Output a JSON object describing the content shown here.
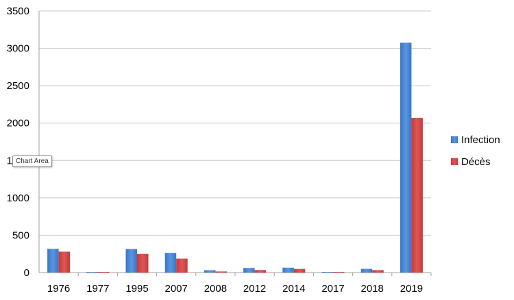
{
  "tooltip": {
    "text": "Chart Area"
  },
  "colors": {
    "infection": "#3A75C4",
    "infection_light": "#5A95E0",
    "deces": "#C43A3A",
    "deces_light": "#E05555",
    "gridline": "#C8C8C8",
    "axis": "#A0A0A0"
  },
  "chart_data": {
    "type": "bar",
    "title": "",
    "xlabel": "",
    "ylabel": "",
    "ylim": [
      0,
      3500
    ],
    "yticks": [
      0,
      500,
      1000,
      1500,
      2000,
      2500,
      3000,
      3500
    ],
    "grid": true,
    "legend_position": "right",
    "categories": [
      "1976",
      "1977",
      "1995",
      "2007",
      "2008",
      "2012",
      "2014",
      "2017",
      "2018",
      "2019"
    ],
    "series": [
      {
        "name": "Infection",
        "color": "#3A75C4",
        "values": [
          318,
          1,
          315,
          264,
          32,
          62,
          66,
          4,
          50,
          3075
        ]
      },
      {
        "name": "Décès",
        "color": "#C43A3A",
        "values": [
          280,
          1,
          250,
          187,
          15,
          34,
          49,
          4,
          33,
          2070
        ]
      }
    ]
  }
}
